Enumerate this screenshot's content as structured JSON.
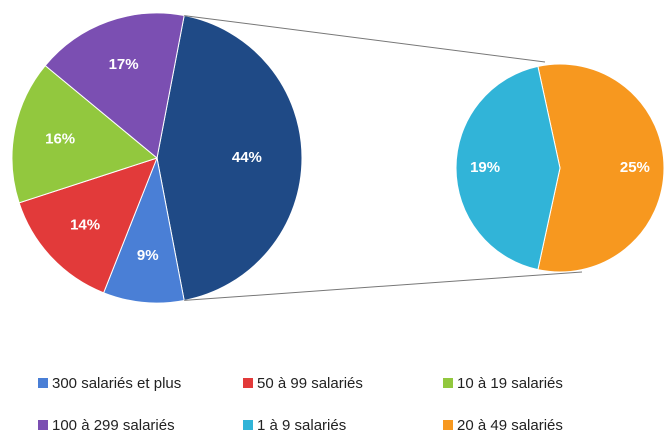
{
  "chart_data": {
    "type": "pie-of-pie",
    "categories": [
      "300 salariés et plus",
      "50 à 99 salariés",
      "10 à 19 salariés",
      "100 à 299 salariés",
      "1 à 9 salariés",
      "20 à 49 salariés"
    ],
    "values": [
      9,
      14,
      16,
      17,
      19,
      25
    ],
    "value_labels": [
      "9%",
      "14%",
      "16%",
      "17%",
      "19%",
      "25%"
    ],
    "colors": [
      "#4a7fd6",
      "#e23a3a",
      "#92c83e",
      "#7b4fb2",
      "#31b4d8",
      "#f7981f"
    ],
    "secondary": [
      false,
      false,
      false,
      false,
      true,
      true
    ],
    "other_value": 44,
    "other_value_label": "44%",
    "other_color": "#1f4a86"
  }
}
